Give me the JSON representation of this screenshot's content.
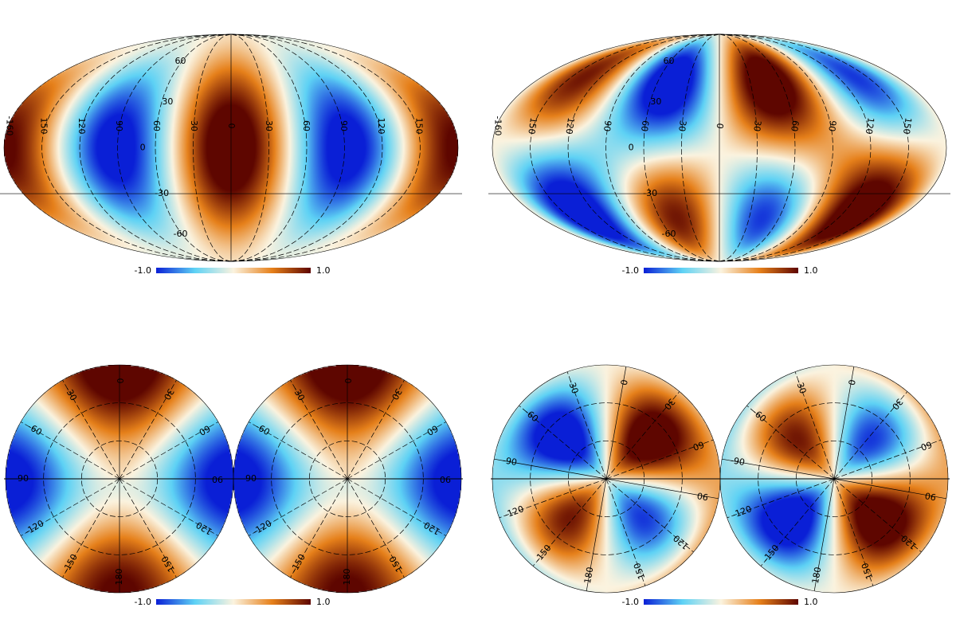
{
  "colors": {
    "cold": "#0a1fd6",
    "cool": "#5ed2f5",
    "neutral": "#fbf3df",
    "warm": "#e6801a",
    "hot": "#5e0600"
  },
  "colorbar": {
    "min_label": "-1.0",
    "max_label": "1.0"
  },
  "mollweide_labels": {
    "meridians": [
      "-150",
      "-120",
      "-90",
      "-60",
      "-30",
      "0",
      "30",
      "60",
      "90",
      "120",
      "150",
      "180"
    ],
    "parallels": [
      "60",
      "30",
      "0",
      "-30",
      "-60"
    ]
  },
  "polar_labels": {
    "rings": [
      "30",
      "60",
      "90"
    ],
    "spokes": [
      "0",
      "30",
      "60",
      "90",
      "120",
      "150",
      "180",
      "-150",
      "-120",
      "-90",
      "-60",
      "-30"
    ]
  },
  "panels": [
    {
      "id": "top-left",
      "kind": "mollweide",
      "pattern": "A"
    },
    {
      "id": "top-right",
      "kind": "mollweide",
      "pattern": "B"
    },
    {
      "id": "bottom-left",
      "kind": "polar-pair",
      "pattern": "A"
    },
    {
      "id": "bottom-right",
      "kind": "polar-pair",
      "pattern": "B"
    }
  ]
}
